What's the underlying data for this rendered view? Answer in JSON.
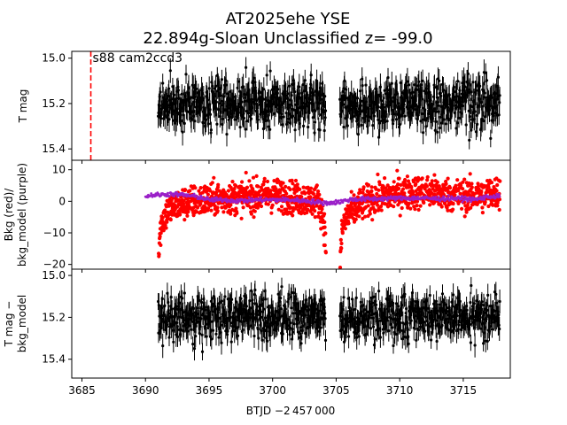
{
  "title": {
    "line1": "AT2025ehe  YSE",
    "line2": "22.894g-Sloan Unclassified z= -99.0"
  },
  "xlabel": "BTJD −2 457 000",
  "colors": {
    "flux": "#000000",
    "bkg": "#ff0000",
    "bkg_model": "#9a20c8",
    "marker": "#ff0000"
  },
  "chart_data": [
    {
      "type": "scatter",
      "panel": "top",
      "ylabel": "T mag",
      "y_inverted": true,
      "xlim": [
        3684.2,
        3718.7
      ],
      "ylim": [
        15.45,
        14.97
      ],
      "yticks": [
        15.0,
        15.2,
        15.4
      ],
      "yticklabels": [
        "15.0",
        "15.2",
        "15.4"
      ],
      "annotation": {
        "text": "s88 cam2ccd3",
        "x": 3685.7,
        "style": "red dashed vertical line"
      },
      "series": [
        {
          "segments": [
            {
              "x_range": [
                3691.0,
                3704.2
              ],
              "y_mean": 15.2,
              "y_spread": 0.1
            },
            {
              "x_range": [
                3705.3,
                3717.9
              ],
              "y_mean": 15.2,
              "y_spread": 0.1
            }
          ]
        }
      ]
    },
    {
      "type": "scatter",
      "panel": "middle",
      "ylabel": "Bkg (red)/\nbkg_model (purple)",
      "xlim": [
        3684.2,
        3718.7
      ],
      "ylim": [
        -21.5,
        13
      ],
      "yticks": [
        10,
        0,
        -10,
        -20
      ],
      "yticklabels": [
        "10",
        "0",
        "−10",
        "−20"
      ],
      "series": [
        {
          "name": "Bkg",
          "color": "red",
          "points": [
            [
              3691.0,
              -20
            ],
            [
              3691.1,
              -12
            ],
            [
              3691.3,
              -6
            ],
            [
              3691.8,
              -3
            ],
            [
              3692.5,
              -1
            ],
            [
              3694,
              0
            ],
            [
              3696,
              1
            ],
            [
              3698,
              1.5
            ],
            [
              3700,
              2
            ],
            [
              3702,
              1
            ],
            [
              3703.6,
              0
            ],
            [
              3704.0,
              -5
            ],
            [
              3704.2,
              -15
            ],
            [
              3705.3,
              -20
            ],
            [
              3705.5,
              -8
            ],
            [
              3706,
              -4
            ],
            [
              3707,
              -1
            ],
            [
              3708,
              1
            ],
            [
              3710,
              2.5
            ],
            [
              3712,
              3
            ],
            [
              3714,
              2
            ],
            [
              3716,
              1.5
            ],
            [
              3717.9,
              3
            ]
          ]
        },
        {
          "name": "bkg_model",
          "color": "purple",
          "points": [
            [
              3690.0,
              1.5
            ],
            [
              3690.5,
              2
            ],
            [
              3691,
              2
            ],
            [
              3692,
              2.3
            ],
            [
              3693,
              2
            ],
            [
              3694,
              1.5
            ],
            [
              3695,
              0.5
            ],
            [
              3696,
              0.5
            ],
            [
              3697,
              0.2
            ],
            [
              3698,
              0.3
            ],
            [
              3699,
              0.5
            ],
            [
              3700,
              0.5
            ],
            [
              3701,
              0.5
            ],
            [
              3702,
              0.3
            ],
            [
              3703,
              0
            ],
            [
              3704,
              -0.5
            ],
            [
              3704.6,
              -0.5
            ],
            [
              3705,
              -0.3
            ],
            [
              3705.5,
              0
            ],
            [
              3706,
              0.5
            ],
            [
              3707,
              0.7
            ],
            [
              3708,
              0.8
            ],
            [
              3709,
              0.9
            ],
            [
              3710,
              1
            ],
            [
              3711,
              1
            ],
            [
              3712,
              1
            ],
            [
              3713,
              0.8
            ],
            [
              3714,
              1
            ],
            [
              3715,
              0.8
            ],
            [
              3716,
              0.6
            ],
            [
              3717,
              1.5
            ],
            [
              3717.9,
              1.5
            ]
          ]
        }
      ]
    },
    {
      "type": "scatter",
      "panel": "bottom",
      "ylabel": "T mag −\nbkg_model",
      "y_inverted": true,
      "xlim": [
        3684.2,
        3718.7
      ],
      "ylim": [
        15.49,
        14.97
      ],
      "yticks": [
        15.0,
        15.2,
        15.4
      ],
      "yticklabels": [
        "15.0",
        "15.2",
        "15.4"
      ],
      "xticks": [
        3685,
        3690,
        3695,
        3700,
        3705,
        3710,
        3715
      ],
      "xticklabels": [
        "3685",
        "3690",
        "3695",
        "3700",
        "3705",
        "3710",
        "3715"
      ],
      "series": [
        {
          "segments": [
            {
              "x_range": [
                3691.0,
                3704.2
              ],
              "y_mean": 15.2,
              "y_spread": 0.1
            },
            {
              "x_range": [
                3705.3,
                3717.9
              ],
              "y_mean": 15.2,
              "y_spread": 0.1
            }
          ]
        }
      ]
    }
  ]
}
